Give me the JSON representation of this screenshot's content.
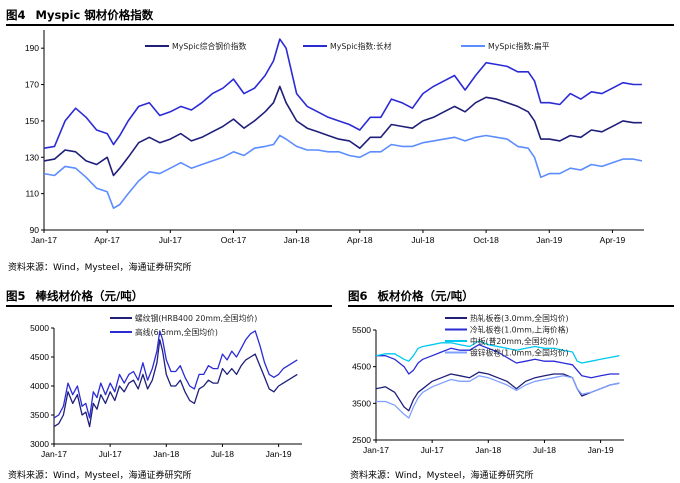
{
  "figures": [
    {
      "num": "图4",
      "title": "Myspic 钢材价格指数",
      "source": "资料来源：Wind，Mysteel，海通证券研究所"
    },
    {
      "num": "图5",
      "title": "棒线材价格（元/吨）",
      "source": "资料来源：Wind，Mysteel，海通证券研究所"
    },
    {
      "num": "图6",
      "title": "板材价格（元/吨）",
      "source": "资料来源：Wind，Mysteel，海通证券研究所"
    }
  ],
  "chart_data": [
    {
      "type": "line",
      "title": "Myspic 钢材价格指数",
      "ylim": [
        90,
        200
      ],
      "yticks": [
        90,
        110,
        130,
        150,
        170,
        190
      ],
      "xlim": [
        0,
        28.5
      ],
      "xticks": [
        {
          "label": "Jan-17",
          "t": 0
        },
        {
          "label": "Apr-17",
          "t": 3
        },
        {
          "label": "Jul-17",
          "t": 6
        },
        {
          "label": "Oct-17",
          "t": 9
        },
        {
          "label": "Jan-18",
          "t": 12
        },
        {
          "label": "Apr-18",
          "t": 15
        },
        {
          "label": "Jul-18",
          "t": 18
        },
        {
          "label": "Oct-18",
          "t": 21
        },
        {
          "label": "Jan-19",
          "t": 24
        },
        {
          "label": "Apr-19",
          "t": 27
        }
      ],
      "series": [
        {
          "name": "MySpic综合钢价指数",
          "color": "#1F1F7A",
          "x": [
            0,
            0.5,
            1,
            1.5,
            2,
            2.5,
            3,
            3.3,
            3.6,
            4,
            4.5,
            5,
            5.5,
            6,
            6.5,
            7,
            7.5,
            8,
            8.5,
            9,
            9.5,
            10,
            10.5,
            10.9,
            11.2,
            11.5,
            12,
            12.5,
            13,
            13.5,
            14,
            14.5,
            15,
            15.5,
            16,
            16.5,
            17,
            17.5,
            18,
            18.5,
            19,
            19.5,
            20,
            20.5,
            21,
            21.5,
            22,
            22.5,
            23,
            23.3,
            23.6,
            24,
            24.5,
            25,
            25.5,
            26,
            26.5,
            27,
            27.5,
            28,
            28.4
          ],
          "y": [
            128,
            129,
            134,
            133,
            128,
            126,
            130,
            120,
            124,
            130,
            138,
            141,
            138,
            140,
            143,
            139,
            141,
            144,
            147,
            151,
            146,
            150,
            155,
            160,
            169,
            160,
            150,
            146,
            144,
            142,
            140,
            139,
            135,
            141,
            141,
            148,
            147,
            146,
            150,
            152,
            155,
            158,
            155,
            160,
            163,
            162,
            160,
            158,
            155,
            150,
            140,
            140,
            139,
            142,
            141,
            145,
            144,
            147,
            150,
            149,
            149
          ]
        },
        {
          "name": "MySpic指数:长材",
          "color": "#2B2BD6",
          "x": [
            0,
            0.5,
            1,
            1.5,
            2,
            2.5,
            3,
            3.3,
            3.6,
            4,
            4.5,
            5,
            5.5,
            6,
            6.5,
            7,
            7.5,
            8,
            8.5,
            9,
            9.5,
            10,
            10.5,
            10.9,
            11.2,
            11.5,
            12,
            12.5,
            13,
            13.5,
            14,
            14.5,
            15,
            15.5,
            16,
            16.5,
            17,
            17.5,
            18,
            18.5,
            19,
            19.5,
            20,
            20.5,
            21,
            21.5,
            22,
            22.5,
            23,
            23.3,
            23.6,
            24,
            24.5,
            25,
            25.5,
            26,
            26.5,
            27,
            27.5,
            28,
            28.4
          ],
          "y": [
            135,
            136,
            150,
            157,
            152,
            145,
            143,
            137,
            142,
            150,
            158,
            160,
            153,
            155,
            158,
            156,
            160,
            165,
            168,
            173,
            165,
            168,
            175,
            183,
            195,
            190,
            165,
            158,
            155,
            152,
            150,
            148,
            145,
            152,
            152,
            162,
            160,
            157,
            165,
            169,
            172,
            175,
            167,
            175,
            182,
            181,
            180,
            177,
            177,
            172,
            160,
            160,
            159,
            165,
            162,
            166,
            165,
            168,
            171,
            170,
            170
          ]
        },
        {
          "name": "MySpic指数:扁平",
          "color": "#5C8DFF",
          "x": [
            0,
            0.5,
            1,
            1.5,
            2,
            2.5,
            3,
            3.3,
            3.6,
            4,
            4.5,
            5,
            5.5,
            6,
            6.5,
            7,
            7.5,
            8,
            8.5,
            9,
            9.5,
            10,
            10.5,
            10.9,
            11.2,
            11.5,
            12,
            12.5,
            13,
            13.5,
            14,
            14.5,
            15,
            15.5,
            16,
            16.5,
            17,
            17.5,
            18,
            18.5,
            19,
            19.5,
            20,
            20.5,
            21,
            21.5,
            22,
            22.5,
            23,
            23.3,
            23.6,
            24,
            24.5,
            25,
            25.5,
            26,
            26.5,
            27,
            27.5,
            28,
            28.4
          ],
          "y": [
            121,
            120,
            125,
            124,
            119,
            113,
            111,
            102,
            104,
            110,
            117,
            122,
            121,
            124,
            127,
            124,
            126,
            128,
            130,
            133,
            131,
            135,
            136,
            137,
            142,
            140,
            136,
            134,
            134,
            133,
            133,
            131,
            130,
            133,
            133,
            137,
            136,
            136,
            138,
            139,
            140,
            141,
            139,
            141,
            142,
            141,
            140,
            136,
            135,
            130,
            119,
            121,
            121,
            124,
            123,
            126,
            125,
            127,
            129,
            129,
            128
          ]
        }
      ]
    },
    {
      "type": "line",
      "title": "棒线材价格（元/吨）",
      "ylim": [
        3000,
        5000
      ],
      "yticks": [
        3000,
        3500,
        4000,
        4500,
        5000
      ],
      "xlim": [
        0,
        26.5
      ],
      "xticks": [
        {
          "label": "Jan-17",
          "t": 0
        },
        {
          "label": "Jul-17",
          "t": 6
        },
        {
          "label": "Jan-18",
          "t": 12
        },
        {
          "label": "Jul-18",
          "t": 18
        },
        {
          "label": "Jan-19",
          "t": 24
        }
      ],
      "series": [
        {
          "name": "螺纹钢(HRB400 20mm,全国均价)",
          "color": "#1F1F7A",
          "x": [
            0,
            0.5,
            1,
            1.5,
            2,
            2.5,
            3,
            3.4,
            3.8,
            4.2,
            4.6,
            5,
            5.5,
            6,
            6.5,
            7,
            7.5,
            8,
            8.5,
            9,
            9.5,
            10,
            10.5,
            11,
            11.3,
            11.6,
            12,
            12.5,
            13,
            13.5,
            14,
            14.5,
            15,
            15.5,
            16,
            16.5,
            17,
            17.5,
            18,
            18.5,
            19,
            19.5,
            20,
            20.5,
            21,
            21.5,
            22,
            22.5,
            23,
            23.5,
            24,
            24.5,
            25,
            25.5,
            26
          ],
          "y": [
            3300,
            3350,
            3500,
            3900,
            3700,
            3850,
            3500,
            3550,
            3300,
            3700,
            3600,
            3850,
            3700,
            3900,
            3750,
            4000,
            3900,
            4050,
            4100,
            3950,
            4200,
            3950,
            4100,
            4400,
            4800,
            4600,
            4200,
            4000,
            4000,
            4100,
            3900,
            3750,
            3700,
            3950,
            4000,
            4100,
            4050,
            4050,
            4300,
            4200,
            4300,
            4200,
            4350,
            4450,
            4500,
            4550,
            4350,
            4150,
            3950,
            3900,
            4000,
            4050,
            4100,
            4150,
            4200
          ]
        },
        {
          "name": "高线(6.5mm,全国均价)",
          "color": "#2B2BD6",
          "x": [
            0,
            0.5,
            1,
            1.5,
            2,
            2.5,
            3,
            3.4,
            3.8,
            4.2,
            4.6,
            5,
            5.5,
            6,
            6.5,
            7,
            7.5,
            8,
            8.5,
            9,
            9.5,
            10,
            10.5,
            11,
            11.3,
            11.6,
            12,
            12.5,
            13,
            13.5,
            14,
            14.5,
            15,
            15.5,
            16,
            16.5,
            17,
            17.5,
            18,
            18.5,
            19,
            19.5,
            20,
            20.5,
            21,
            21.5,
            22,
            22.5,
            23,
            23.5,
            24,
            24.5,
            25,
            25.5,
            26
          ],
          "y": [
            3450,
            3500,
            3650,
            4050,
            3850,
            4000,
            3650,
            3700,
            3450,
            3900,
            3800,
            4050,
            3850,
            4050,
            3900,
            4200,
            4050,
            4200,
            4250,
            4100,
            4400,
            4100,
            4300,
            4600,
            4950,
            4800,
            4450,
            4250,
            4250,
            4350,
            4150,
            4000,
            3950,
            4200,
            4200,
            4350,
            4300,
            4300,
            4550,
            4450,
            4600,
            4500,
            4650,
            4800,
            4900,
            4950,
            4700,
            4400,
            4200,
            4150,
            4200,
            4300,
            4350,
            4400,
            4450
          ]
        }
      ]
    },
    {
      "type": "line",
      "title": "板材价格（元/吨）",
      "ylim": [
        2500,
        5500
      ],
      "yticks": [
        2500,
        3500,
        4500,
        5500
      ],
      "xlim": [
        0,
        26.5
      ],
      "xticks": [
        {
          "label": "Jan-17",
          "t": 0
        },
        {
          "label": "Jul-17",
          "t": 6
        },
        {
          "label": "Jan-18",
          "t": 12
        },
        {
          "label": "Jul-18",
          "t": 18
        },
        {
          "label": "Jan-19",
          "t": 24
        }
      ],
      "series": [
        {
          "name": "热轧板卷(3.0mm,全国均价)",
          "color": "#1F1F7A",
          "x": [
            0,
            1,
            2,
            3,
            3.5,
            4,
            4.5,
            5,
            6,
            7,
            8,
            9,
            10,
            11,
            12,
            13,
            14,
            15,
            16,
            17,
            18,
            19,
            20,
            21,
            21.5,
            22,
            23,
            24,
            25,
            26
          ],
          "y": [
            3900,
            3950,
            3800,
            3400,
            3300,
            3600,
            3800,
            3900,
            4100,
            4200,
            4300,
            4250,
            4200,
            4350,
            4300,
            4200,
            4100,
            3900,
            4100,
            4200,
            4250,
            4300,
            4300,
            4200,
            3900,
            3700,
            3800,
            3900,
            4000,
            4050
          ]
        },
        {
          "name": "冷轧板卷(1.0mm,上海价格)",
          "color": "#2B2BD6",
          "x": [
            0,
            1,
            2,
            3,
            3.5,
            4,
            4.5,
            5,
            6,
            7,
            8,
            9,
            10,
            11,
            12,
            13,
            14,
            15,
            16,
            17,
            18,
            19,
            20,
            21,
            21.5,
            22,
            23,
            24,
            25,
            26
          ],
          "y": [
            4800,
            4800,
            4700,
            4500,
            4300,
            4400,
            4600,
            4700,
            4800,
            4900,
            5000,
            4950,
            4950,
            5100,
            5000,
            4900,
            4750,
            4600,
            4650,
            4700,
            4650,
            4650,
            4600,
            4550,
            4400,
            4250,
            4200,
            4250,
            4300,
            4300
          ]
        },
        {
          "name": "中板(普20mm,全国均价)",
          "color": "#00C8F0",
          "x": [
            0,
            1,
            2,
            3,
            3.5,
            4,
            4.5,
            5,
            6,
            7,
            8,
            9,
            10,
            11,
            12,
            13,
            14,
            15,
            16,
            17,
            18,
            19,
            20,
            21,
            21.5,
            22,
            23,
            24,
            25,
            26
          ],
          "y": [
            4800,
            4850,
            4850,
            4700,
            4650,
            4800,
            5000,
            5050,
            5100,
            5150,
            5150,
            5100,
            5050,
            5200,
            5100,
            5050,
            5000,
            4950,
            5000,
            5050,
            5000,
            5000,
            4950,
            4900,
            4650,
            4600,
            4650,
            4700,
            4750,
            4800
          ]
        },
        {
          "name": "镀锌板卷(1.0mm,全国均价)",
          "color": "#7FA0FF",
          "x": [
            0,
            1,
            2,
            3,
            3.5,
            4,
            4.5,
            5,
            6,
            7,
            8,
            9,
            10,
            11,
            12,
            13,
            14,
            15,
            16,
            17,
            18,
            19,
            20,
            21,
            21.5,
            22,
            23,
            24,
            25,
            26
          ],
          "y": [
            3550,
            3550,
            3450,
            3200,
            3100,
            3400,
            3650,
            3800,
            3950,
            4050,
            4150,
            4100,
            4100,
            4250,
            4200,
            4100,
            4000,
            3850,
            4000,
            4100,
            4150,
            4200,
            4250,
            4200,
            3900,
            3750,
            3800,
            3900,
            4000,
            4050
          ]
        }
      ]
    }
  ]
}
